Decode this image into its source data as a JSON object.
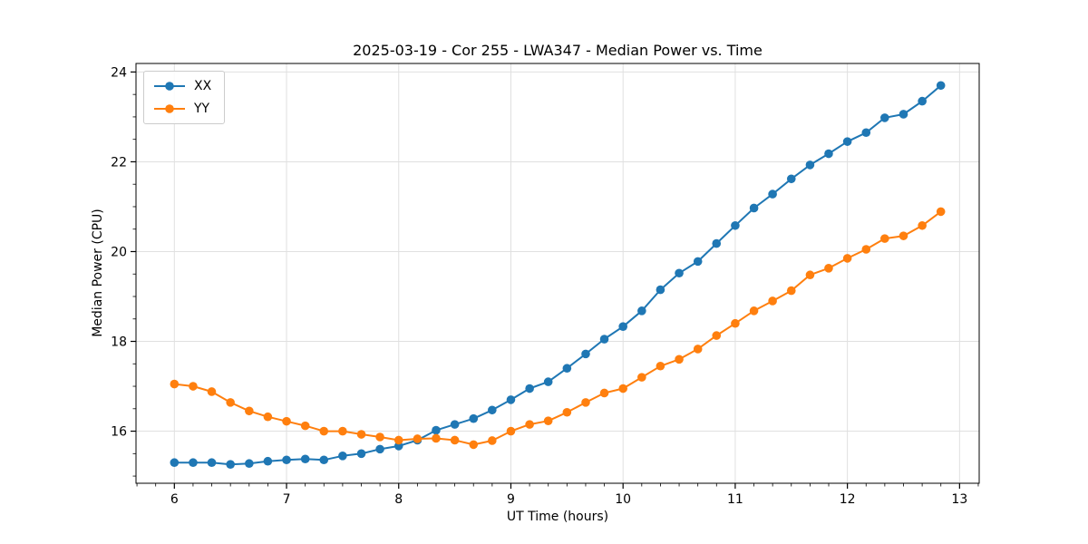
{
  "chart_data": {
    "type": "line",
    "title": "2025-03-19 - Cor 255 - LWA347 - Median Power vs. Time",
    "xlabel": "UT Time (hours)",
    "ylabel": "Median Power (CPU)",
    "xlim": [
      5.658,
      13.175
    ],
    "ylim": [
      14.84,
      24.19
    ],
    "xticks": [
      6,
      7,
      8,
      9,
      10,
      11,
      12,
      13
    ],
    "yticks": [
      16,
      18,
      20,
      22,
      24
    ],
    "x_minor_step": 0.1667,
    "y_minor_step": 0.5,
    "grid": true,
    "grid_color": "#e0e0e0",
    "legend_position": "upper-left",
    "marker": "circle",
    "x": [
      6.0,
      6.167,
      6.333,
      6.5,
      6.667,
      6.833,
      7.0,
      7.167,
      7.333,
      7.5,
      7.667,
      7.833,
      8.0,
      8.167,
      8.333,
      8.5,
      8.667,
      8.833,
      9.0,
      9.167,
      9.333,
      9.5,
      9.667,
      9.833,
      10.0,
      10.167,
      10.333,
      10.5,
      10.667,
      10.833,
      11.0,
      11.167,
      11.333,
      11.5,
      11.667,
      11.833,
      12.0,
      12.167,
      12.333,
      12.5,
      12.667,
      12.833
    ],
    "series": [
      {
        "name": "XX",
        "color": "#1f77b4",
        "values": [
          15.3,
          15.3,
          15.3,
          15.26,
          15.28,
          15.33,
          15.36,
          15.38,
          15.36,
          15.45,
          15.5,
          15.6,
          15.67,
          15.8,
          16.02,
          16.15,
          16.28,
          16.47,
          16.7,
          16.95,
          17.1,
          17.4,
          17.72,
          18.05,
          18.33,
          18.68,
          19.15,
          19.52,
          19.78,
          20.18,
          20.58,
          20.97,
          21.28,
          21.62,
          21.93,
          22.18,
          22.45,
          22.65,
          22.98,
          23.06,
          23.35,
          23.7
        ]
      },
      {
        "name": "YY",
        "color": "#ff7f0e",
        "values": [
          17.05,
          17.0,
          16.88,
          16.64,
          16.45,
          16.32,
          16.22,
          16.12,
          16.0,
          16.0,
          15.93,
          15.87,
          15.8,
          15.83,
          15.84,
          15.8,
          15.7,
          15.79,
          16.0,
          16.15,
          16.23,
          16.42,
          16.64,
          16.85,
          16.95,
          17.2,
          17.45,
          17.6,
          17.83,
          18.13,
          18.4,
          18.68,
          18.9,
          19.13,
          19.48,
          19.63,
          19.85,
          20.05,
          20.29,
          20.35,
          20.58,
          20.89
        ]
      }
    ]
  }
}
